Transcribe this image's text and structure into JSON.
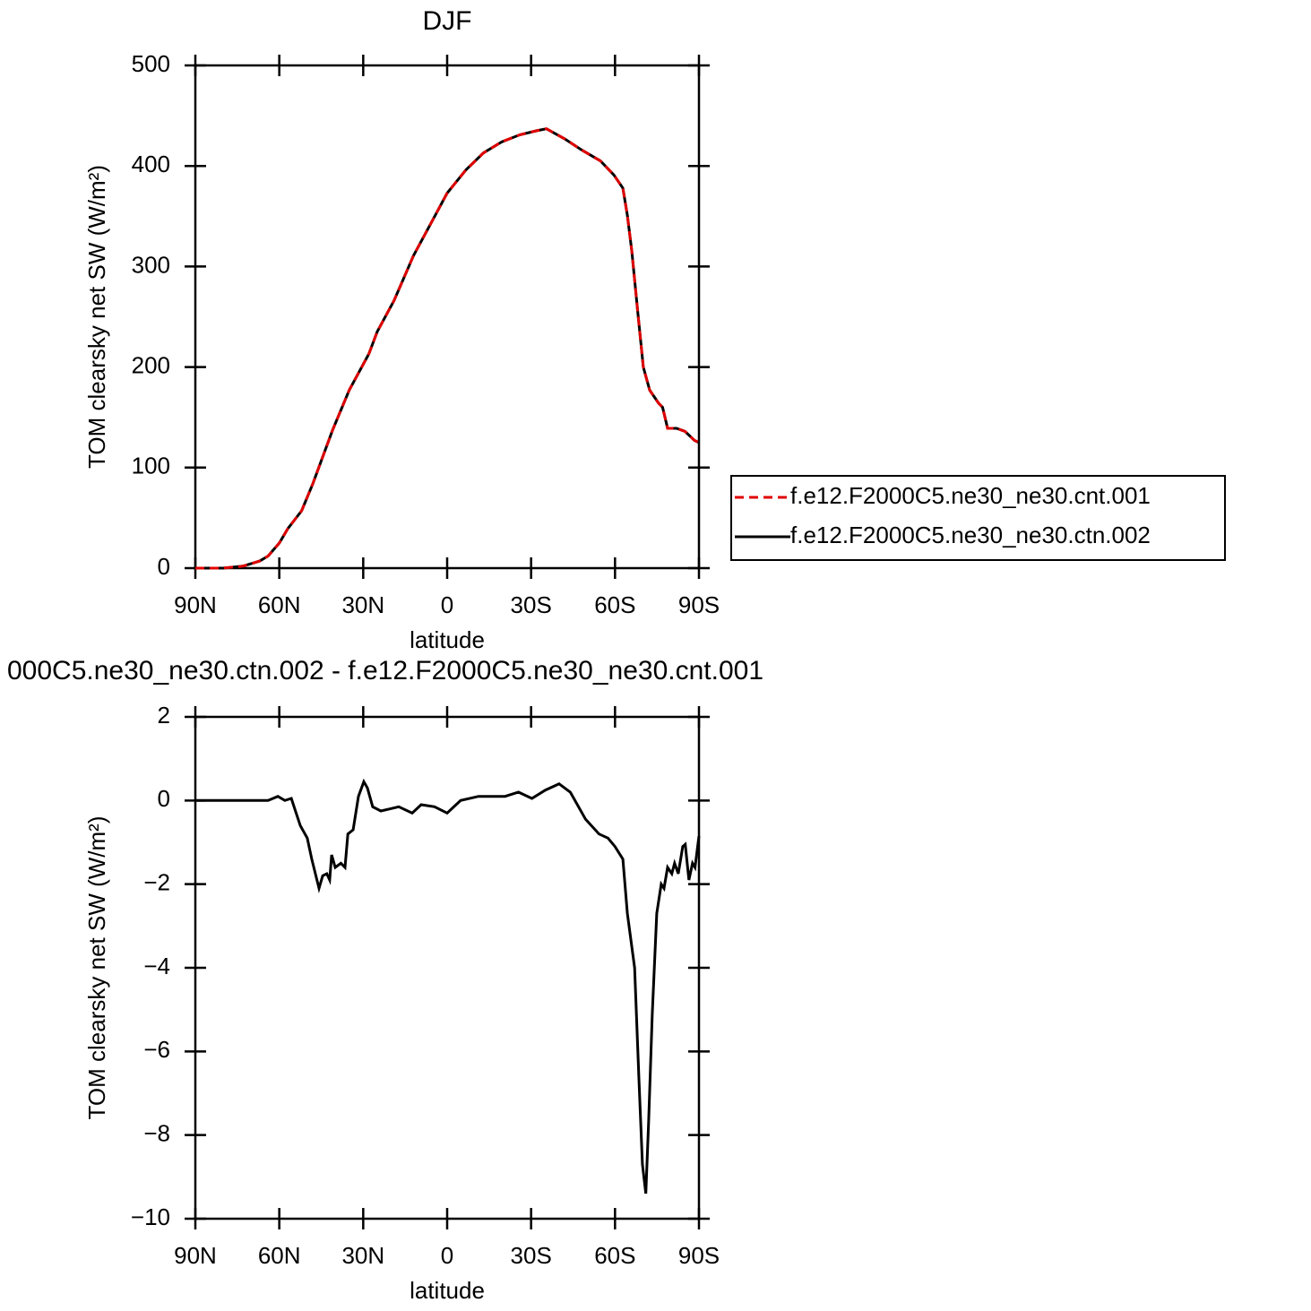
{
  "chart_data": [
    {
      "type": "line",
      "title": "DJF",
      "xlabel": "latitude",
      "ylabel": "TOM clearsky net SW (W/m²)",
      "x": [
        90,
        80,
        73,
        67,
        64,
        60,
        57,
        52,
        48,
        41,
        35,
        28,
        25,
        19,
        12,
        6,
        0,
        -6.7,
        -13,
        -19.5,
        -26,
        -32,
        -35.5,
        -42,
        -48,
        -54.8,
        -59.6,
        -62.8,
        -64.4,
        -66,
        -68.2,
        -70.1,
        -72.4,
        -75.6,
        -77,
        -78.8,
        -82,
        -85,
        -88.4,
        -90
      ],
      "series": [
        {
          "name": "f.e12.F2000C5.ne30_ne30.cnt.001",
          "color": "#e00000",
          "linestyle": "dashed",
          "values": [
            0,
            0,
            2,
            7,
            12,
            25,
            39,
            57,
            84,
            137,
            177,
            213,
            235,
            266,
            311,
            342,
            373,
            396,
            413,
            424,
            431,
            435,
            437,
            427,
            416,
            405,
            391,
            378,
            351,
            315,
            253,
            200,
            177,
            164,
            160,
            139,
            139,
            136,
            127,
            125
          ]
        },
        {
          "name": "f.e12.F2000C5.ne30_ne30.ctn.002",
          "color": "#000000",
          "linestyle": "solid",
          "values": [
            0,
            0,
            2,
            7,
            12,
            25,
            39,
            57,
            84,
            137,
            177,
            213,
            235,
            266,
            311,
            342,
            373,
            396,
            413,
            424,
            431,
            435,
            437,
            427,
            416,
            405,
            391,
            378,
            351,
            315,
            253,
            200,
            177,
            164,
            160,
            139,
            139,
            136,
            127,
            125
          ]
        }
      ],
      "xlim": [
        90,
        -90
      ],
      "xticks": [
        {
          "value": 90,
          "label": "90N"
        },
        {
          "value": 60,
          "label": "60N"
        },
        {
          "value": 30,
          "label": "30N"
        },
        0,
        {
          "value": -30,
          "label": "30S"
        },
        {
          "value": -60,
          "label": "60S"
        },
        {
          "value": -90,
          "label": "90S"
        }
      ],
      "ylim": [
        0,
        500
      ],
      "yticks": [
        0,
        100,
        200,
        300,
        400,
        500
      ],
      "legend": "right"
    },
    {
      "type": "line",
      "title": "000C5.ne30_ne30.ctn.002 - f.e12.F2000C5.ne30_ne30.cnt.001",
      "xlabel": "latitude",
      "ylabel": "TOM clearsky net SW (W/m²)",
      "x": [
        90,
        73,
        64,
        60.5,
        58,
        55.7,
        52.5,
        50,
        48.4,
        45.8,
        44.5,
        43,
        42,
        41.3,
        40,
        38,
        36.5,
        35.5,
        33.6,
        31.7,
        29.8,
        28.5,
        26.6,
        23.7,
        20.5,
        17.3,
        12.5,
        9.3,
        4.5,
        0,
        -4.8,
        -11.2,
        -17.6,
        -20.7,
        -25.5,
        -30.3,
        -35.1,
        -40,
        -44,
        -49.5,
        -54.3,
        -57.5,
        -60,
        -62.8,
        -64.4,
        -67,
        -68.5,
        -69.8,
        -71,
        -72,
        -73.3,
        -74.9,
        -76.5,
        -77.5,
        -78.8,
        -80.3,
        -81.3,
        -82.6,
        -84.2,
        -85.1,
        -86.4,
        -87.7,
        -88.6,
        -90
      ],
      "series": [
        {
          "color": "#000000",
          "linestyle": "solid",
          "values": [
            0,
            0,
            0,
            0.1,
            0,
            0.05,
            -0.6,
            -0.9,
            -1.4,
            -2.1,
            -1.8,
            -1.75,
            -1.9,
            -1.3,
            -1.6,
            -1.5,
            -1.6,
            -0.8,
            -0.7,
            0.1,
            0.45,
            0.3,
            -0.15,
            -0.25,
            -0.2,
            -0.15,
            -0.3,
            -0.1,
            -0.15,
            -0.3,
            0,
            0.1,
            0.1,
            0.1,
            0.2,
            0.05,
            0.25,
            0.4,
            0.2,
            -0.45,
            -0.8,
            -0.9,
            -1.1,
            -1.4,
            -2.7,
            -4,
            -6.6,
            -8.7,
            -9.4,
            -7.7,
            -5.1,
            -2.7,
            -2.0,
            -2.1,
            -1.6,
            -1.75,
            -1.5,
            -1.75,
            -1.1,
            -1.05,
            -1.9,
            -1.5,
            -1.6,
            -0.85
          ]
        }
      ],
      "xlim": [
        90,
        -90
      ],
      "xticks": [
        {
          "value": 90,
          "label": "90N"
        },
        {
          "value": 60,
          "label": "60N"
        },
        {
          "value": 30,
          "label": "30N"
        },
        0,
        {
          "value": -30,
          "label": "30S"
        },
        {
          "value": -60,
          "label": "60S"
        },
        {
          "value": -90,
          "label": "90S"
        }
      ],
      "ylim": [
        -10,
        2
      ],
      "yticks": [
        {
          "value": -10,
          "label": "−10"
        },
        {
          "value": -8,
          "label": "−8"
        },
        {
          "value": -6,
          "label": "−6"
        },
        {
          "value": -4,
          "label": "−4"
        },
        {
          "value": -2,
          "label": "−2"
        },
        0,
        2
      ]
    }
  ]
}
